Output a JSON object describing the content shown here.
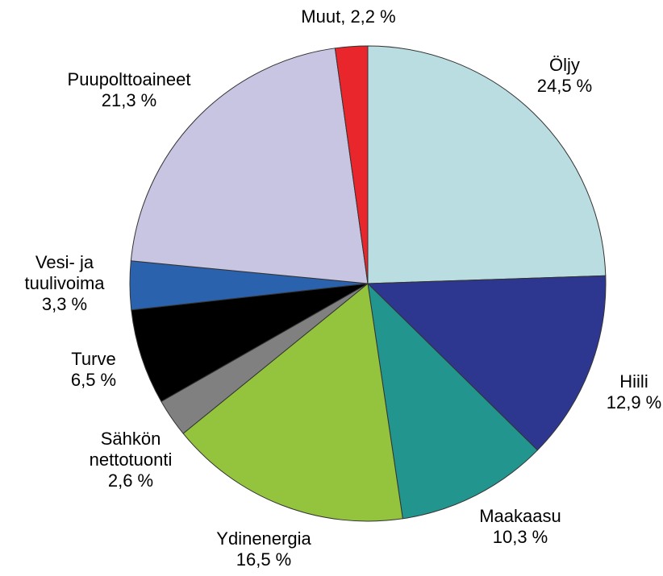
{
  "chart_data": {
    "type": "pie",
    "categories": [
      "Öljy",
      "Hiili",
      "Maakaasu",
      "Ydinenergia",
      "Sähkön nettotuonti",
      "Turve",
      "Vesi- ja tuulivoima",
      "Puupolttoaineet",
      "Muut,"
    ],
    "values": [
      24.5,
      12.9,
      10.3,
      16.5,
      2.6,
      6.5,
      3.3,
      21.3,
      2.2
    ],
    "value_labels": [
      "24,5 %",
      "12,9 %",
      "10,3 %",
      "16,5 %",
      "2,6 %",
      "6,5 %",
      "3,3 %",
      "21,3 %",
      "2,2 %"
    ],
    "colors": [
      "#b9dde1",
      "#2e3790",
      "#22958f",
      "#94c43e",
      "#808080",
      "#000000",
      "#2a62ae",
      "#c8c5e2",
      "#e8262b"
    ]
  }
}
